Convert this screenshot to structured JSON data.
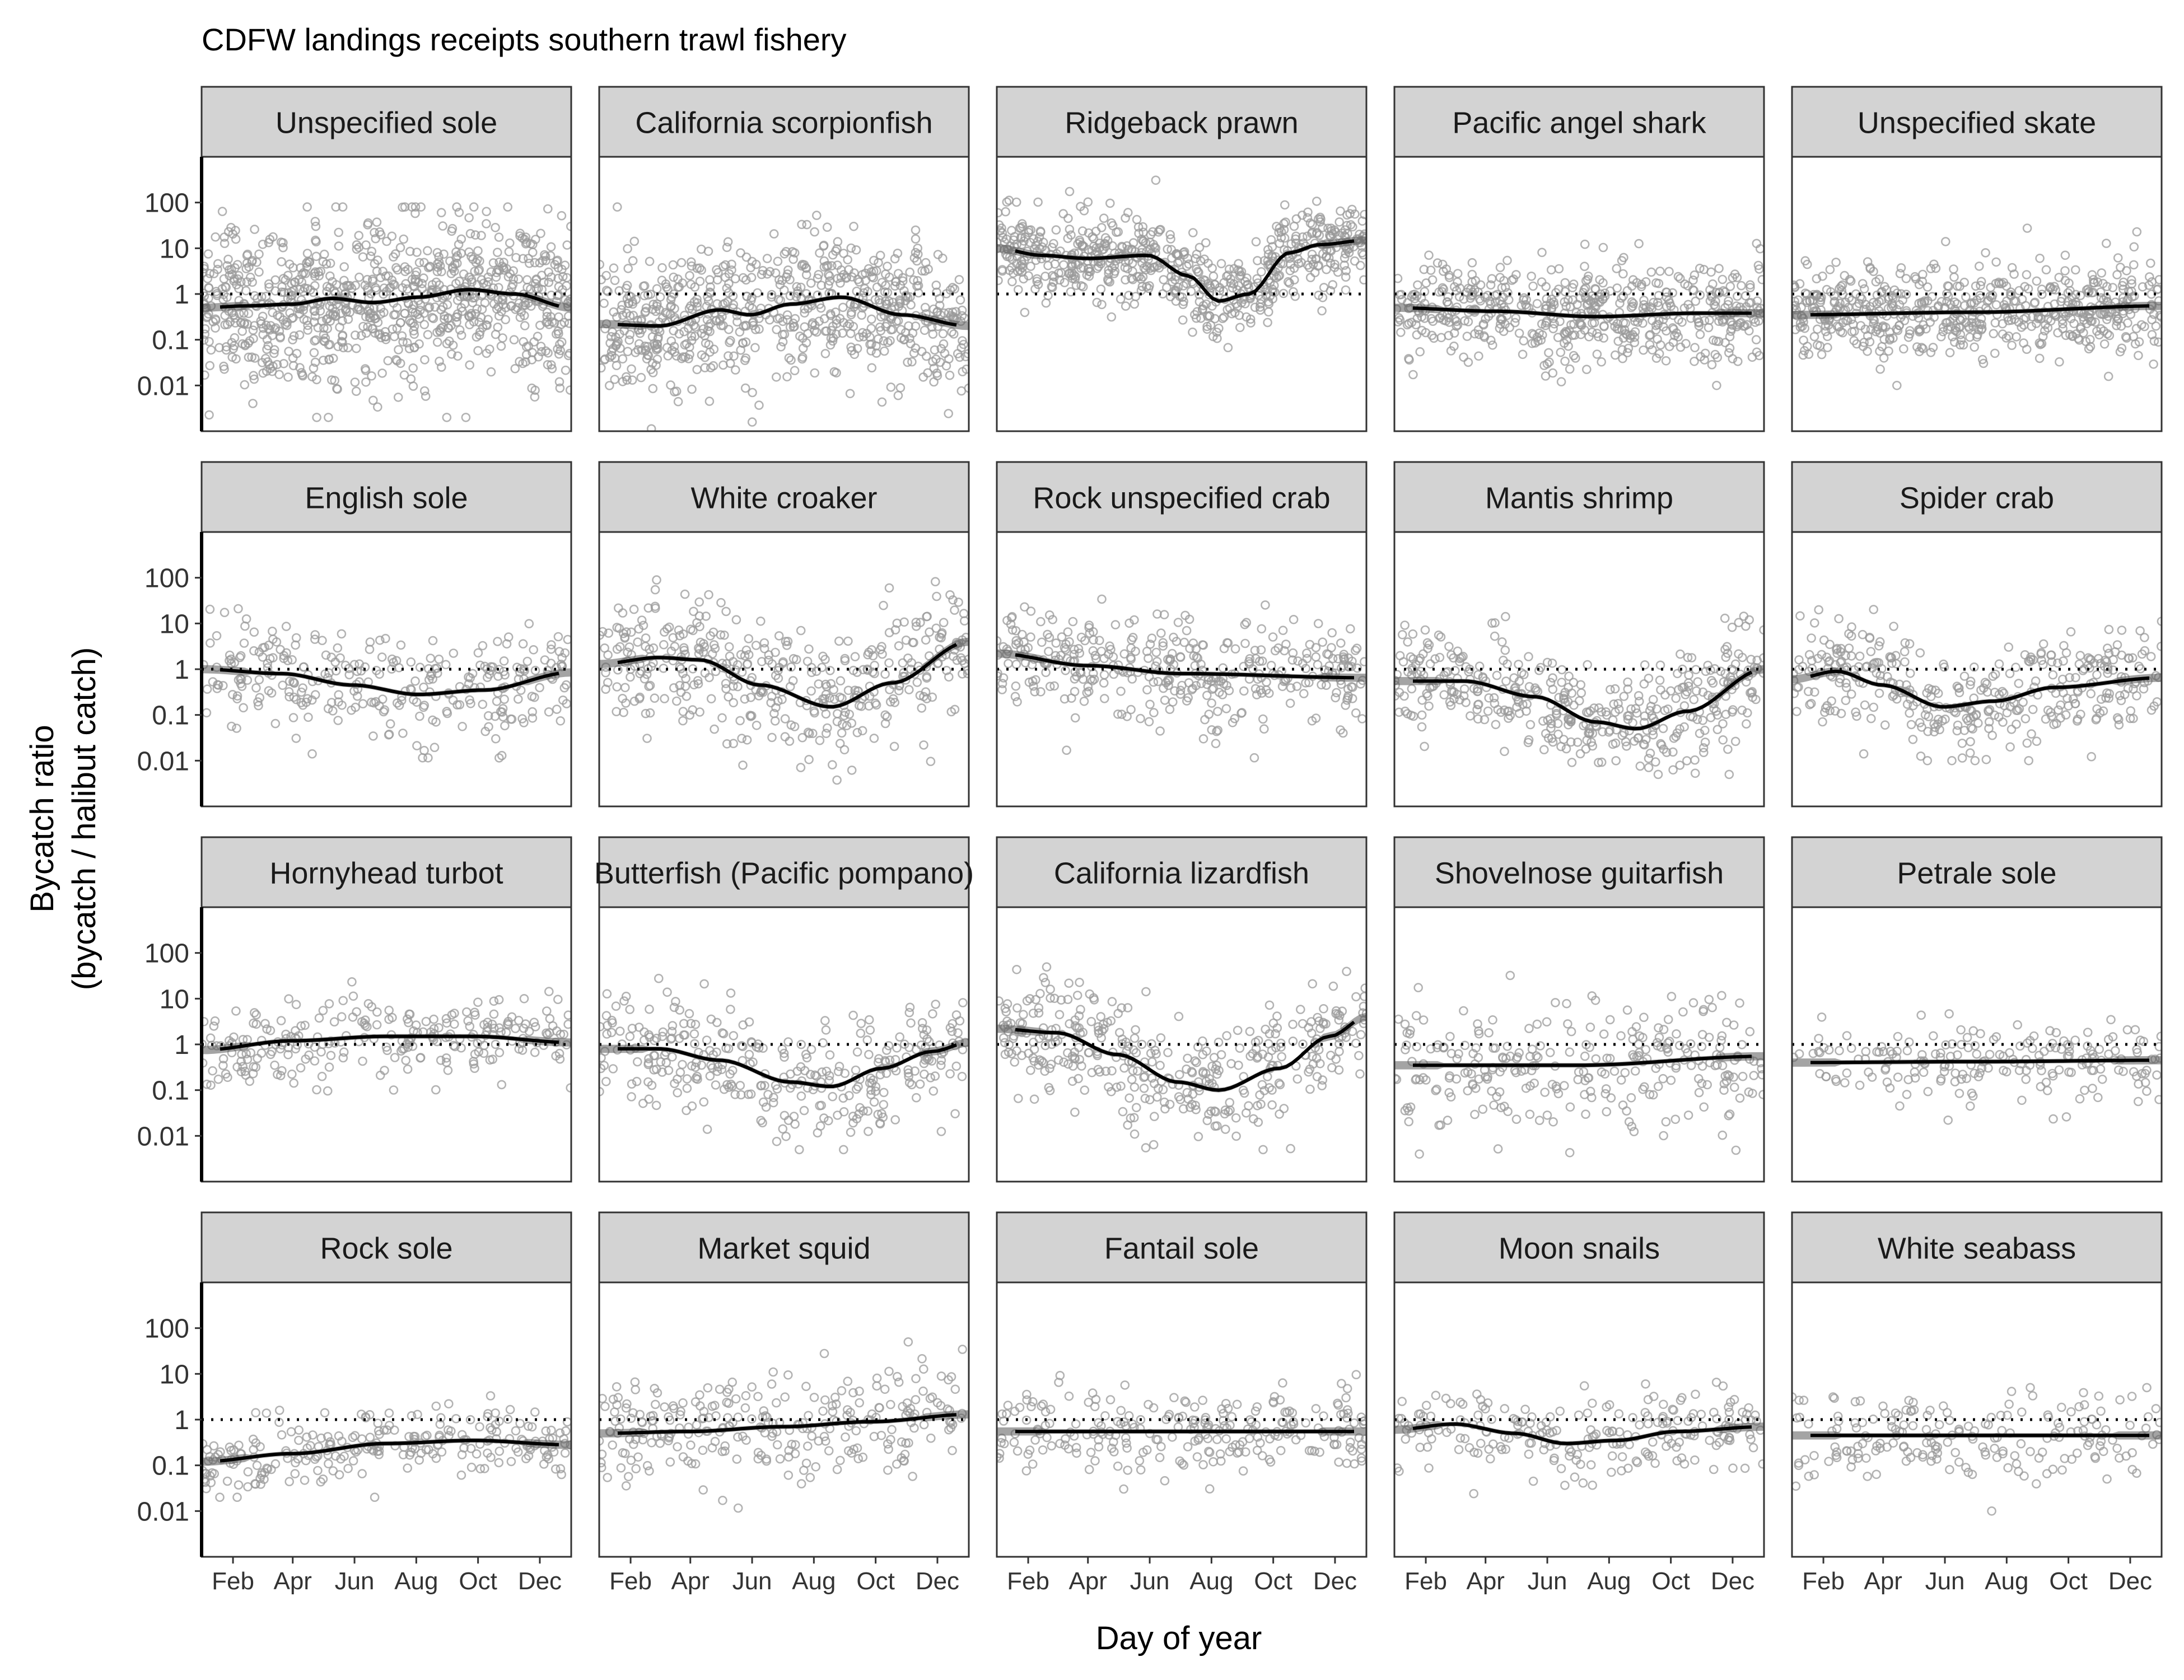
{
  "chart_data": {
    "type": "scatter",
    "title": "CDFW landings receipts southern trawl fishery",
    "xlabel": "Day of year",
    "ylabel_lines": [
      "Bycatch ratio",
      "(bycatch / halibut catch)"
    ],
    "y_scale": "log10",
    "ylim": [
      0.001,
      1000
    ],
    "y_ticks": [
      0.01,
      0.1,
      1,
      10,
      100
    ],
    "y_tick_labels": [
      "0.01",
      "0.1",
      "1",
      "10",
      "100"
    ],
    "xlim": [
      1,
      366
    ],
    "x_ticks": [
      32,
      91,
      152,
      213,
      274,
      335
    ],
    "x_tick_labels": [
      "Feb",
      "Apr",
      "Jun",
      "Aug",
      "Oct",
      "Dec"
    ],
    "reference_line": {
      "y": 1,
      "style": "dotted"
    },
    "grid": false,
    "layout": "facet grid, 4 rows x 5 columns",
    "colors": {
      "points": "#9a9a9a",
      "smooth": "#000000",
      "ribbon": "#5a5a5a",
      "strip": "#d3d3d3",
      "panel_border": "#333333"
    },
    "panels": [
      {
        "name": "Unspecified sole",
        "n": 900,
        "spread": 0.85,
        "clip_low": 0.002,
        "clip_high": 80,
        "smooth": [
          [
            1,
            0.5
          ],
          [
            45,
            0.55
          ],
          [
            91,
            0.6
          ],
          [
            130,
            0.8
          ],
          [
            170,
            0.65
          ],
          [
            215,
            0.85
          ],
          [
            265,
            1.25
          ],
          [
            310,
            1.0
          ],
          [
            366,
            0.5
          ]
        ]
      },
      {
        "name": "California scorpionfish",
        "n": 700,
        "spread": 0.75,
        "clip_low": 0.001,
        "clip_high": 80,
        "smooth": [
          [
            1,
            0.22
          ],
          [
            60,
            0.2
          ],
          [
            120,
            0.45
          ],
          [
            150,
            0.35
          ],
          [
            190,
            0.6
          ],
          [
            240,
            0.85
          ],
          [
            300,
            0.35
          ],
          [
            366,
            0.2
          ]
        ]
      },
      {
        "name": "Ridgeback prawn",
        "n": 650,
        "spread": 0.45,
        "clip_low": 0.003,
        "clip_high": 400,
        "smooth": [
          [
            1,
            10
          ],
          [
            45,
            7
          ],
          [
            90,
            6
          ],
          [
            150,
            7
          ],
          [
            190,
            2.5
          ],
          [
            220,
            0.7
          ],
          [
            250,
            1
          ],
          [
            290,
            8
          ],
          [
            320,
            12
          ],
          [
            366,
            15
          ]
        ]
      },
      {
        "name": "Pacific angel shark",
        "n": 550,
        "spread": 0.55,
        "clip_low": 0.01,
        "clip_high": 30,
        "smooth": [
          [
            1,
            0.5
          ],
          [
            100,
            0.42
          ],
          [
            200,
            0.32
          ],
          [
            300,
            0.38
          ],
          [
            366,
            0.38
          ]
        ]
      },
      {
        "name": "Unspecified skate",
        "n": 600,
        "spread": 0.5,
        "clip_low": 0.01,
        "clip_high": 40,
        "smooth": [
          [
            1,
            0.35
          ],
          [
            183,
            0.4
          ],
          [
            366,
            0.55
          ]
        ]
      },
      {
        "name": "English sole",
        "n": 300,
        "spread": 0.6,
        "clip_low": 0.01,
        "clip_high": 40,
        "smooth": [
          [
            1,
            1.0
          ],
          [
            80,
            0.8
          ],
          [
            150,
            0.45
          ],
          [
            215,
            0.28
          ],
          [
            280,
            0.35
          ],
          [
            366,
            0.85
          ]
        ]
      },
      {
        "name": "White croaker",
        "n": 420,
        "spread": 0.7,
        "clip_low": 0.002,
        "clip_high": 250,
        "smooth": [
          [
            1,
            1.3
          ],
          [
            60,
            1.8
          ],
          [
            100,
            1.6
          ],
          [
            160,
            0.45
          ],
          [
            230,
            0.15
          ],
          [
            290,
            0.5
          ],
          [
            366,
            4.0
          ]
        ]
      },
      {
        "name": "Rock unspecified crab",
        "n": 380,
        "spread": 0.55,
        "clip_low": 0.005,
        "clip_high": 50,
        "smooth": [
          [
            1,
            2.2
          ],
          [
            90,
            1.2
          ],
          [
            183,
            0.8
          ],
          [
            366,
            0.65
          ]
        ]
      },
      {
        "name": "Mantis shrimp",
        "n": 420,
        "spread": 0.6,
        "clip_low": 0.005,
        "clip_high": 50,
        "smooth": [
          [
            1,
            0.55
          ],
          [
            70,
            0.55
          ],
          [
            140,
            0.25
          ],
          [
            200,
            0.07
          ],
          [
            240,
            0.05
          ],
          [
            290,
            0.12
          ],
          [
            366,
            1.0
          ]
        ]
      },
      {
        "name": "Spider crab",
        "n": 380,
        "spread": 0.55,
        "clip_low": 0.01,
        "clip_high": 40,
        "smooth": [
          [
            1,
            0.6
          ],
          [
            45,
            0.9
          ],
          [
            90,
            0.45
          ],
          [
            150,
            0.15
          ],
          [
            200,
            0.2
          ],
          [
            260,
            0.4
          ],
          [
            366,
            0.65
          ]
        ]
      },
      {
        "name": "Hornyhead turbot",
        "n": 260,
        "spread": 0.45,
        "clip_low": 0.01,
        "clip_high": 40,
        "smooth": [
          [
            1,
            0.75
          ],
          [
            90,
            1.2
          ],
          [
            183,
            1.5
          ],
          [
            270,
            1.5
          ],
          [
            366,
            1.1
          ]
        ]
      },
      {
        "name": "Butterfish (Pacific pompano)",
        "n": 330,
        "spread": 0.6,
        "clip_low": 0.005,
        "clip_high": 50,
        "smooth": [
          [
            1,
            0.8
          ],
          [
            60,
            0.8
          ],
          [
            120,
            0.45
          ],
          [
            190,
            0.15
          ],
          [
            230,
            0.12
          ],
          [
            280,
            0.3
          ],
          [
            330,
            0.7
          ],
          [
            366,
            1.1
          ]
        ]
      },
      {
        "name": "California lizardfish",
        "n": 380,
        "spread": 0.6,
        "clip_low": 0.005,
        "clip_high": 80,
        "smooth": [
          [
            1,
            2.2
          ],
          [
            60,
            1.8
          ],
          [
            120,
            0.6
          ],
          [
            180,
            0.15
          ],
          [
            220,
            0.1
          ],
          [
            280,
            0.3
          ],
          [
            330,
            1.5
          ],
          [
            366,
            4.0
          ]
        ]
      },
      {
        "name": "Shovelnose guitarfish",
        "n": 280,
        "spread": 0.7,
        "clip_low": 0.004,
        "clip_high": 400,
        "smooth": [
          [
            1,
            0.35
          ],
          [
            183,
            0.35
          ],
          [
            366,
            0.55
          ]
        ]
      },
      {
        "name": "Petrale sole",
        "n": 200,
        "spread": 0.45,
        "clip_low": 0.005,
        "clip_high": 10,
        "smooth": [
          [
            1,
            0.4
          ],
          [
            183,
            0.42
          ],
          [
            366,
            0.45
          ]
        ]
      },
      {
        "name": "Rock sole",
        "n": 250,
        "spread": 0.35,
        "clip_low": 0.02,
        "clip_high": 8,
        "smooth": [
          [
            1,
            0.12
          ],
          [
            90,
            0.18
          ],
          [
            183,
            0.3
          ],
          [
            270,
            0.35
          ],
          [
            366,
            0.28
          ]
        ]
      },
      {
        "name": "Market squid",
        "n": 280,
        "spread": 0.6,
        "clip_low": 0.01,
        "clip_high": 50,
        "smooth": [
          [
            1,
            0.5
          ],
          [
            90,
            0.55
          ],
          [
            183,
            0.7
          ],
          [
            270,
            0.9
          ],
          [
            366,
            1.3
          ]
        ]
      },
      {
        "name": "Fantail sole",
        "n": 250,
        "spread": 0.45,
        "clip_low": 0.01,
        "clip_high": 10,
        "smooth": [
          [
            1,
            0.55
          ],
          [
            183,
            0.55
          ],
          [
            366,
            0.55
          ]
        ]
      },
      {
        "name": "Moon snails",
        "n": 230,
        "spread": 0.45,
        "clip_low": 0.01,
        "clip_high": 20,
        "smooth": [
          [
            1,
            0.6
          ],
          [
            60,
            0.8
          ],
          [
            120,
            0.5
          ],
          [
            170,
            0.3
          ],
          [
            220,
            0.35
          ],
          [
            280,
            0.55
          ],
          [
            366,
            0.7
          ]
        ]
      },
      {
        "name": "White seabass",
        "n": 200,
        "spread": 0.5,
        "clip_low": 0.01,
        "clip_high": 5,
        "smooth": [
          [
            1,
            0.45
          ],
          [
            183,
            0.45
          ],
          [
            366,
            0.45
          ]
        ]
      }
    ]
  }
}
